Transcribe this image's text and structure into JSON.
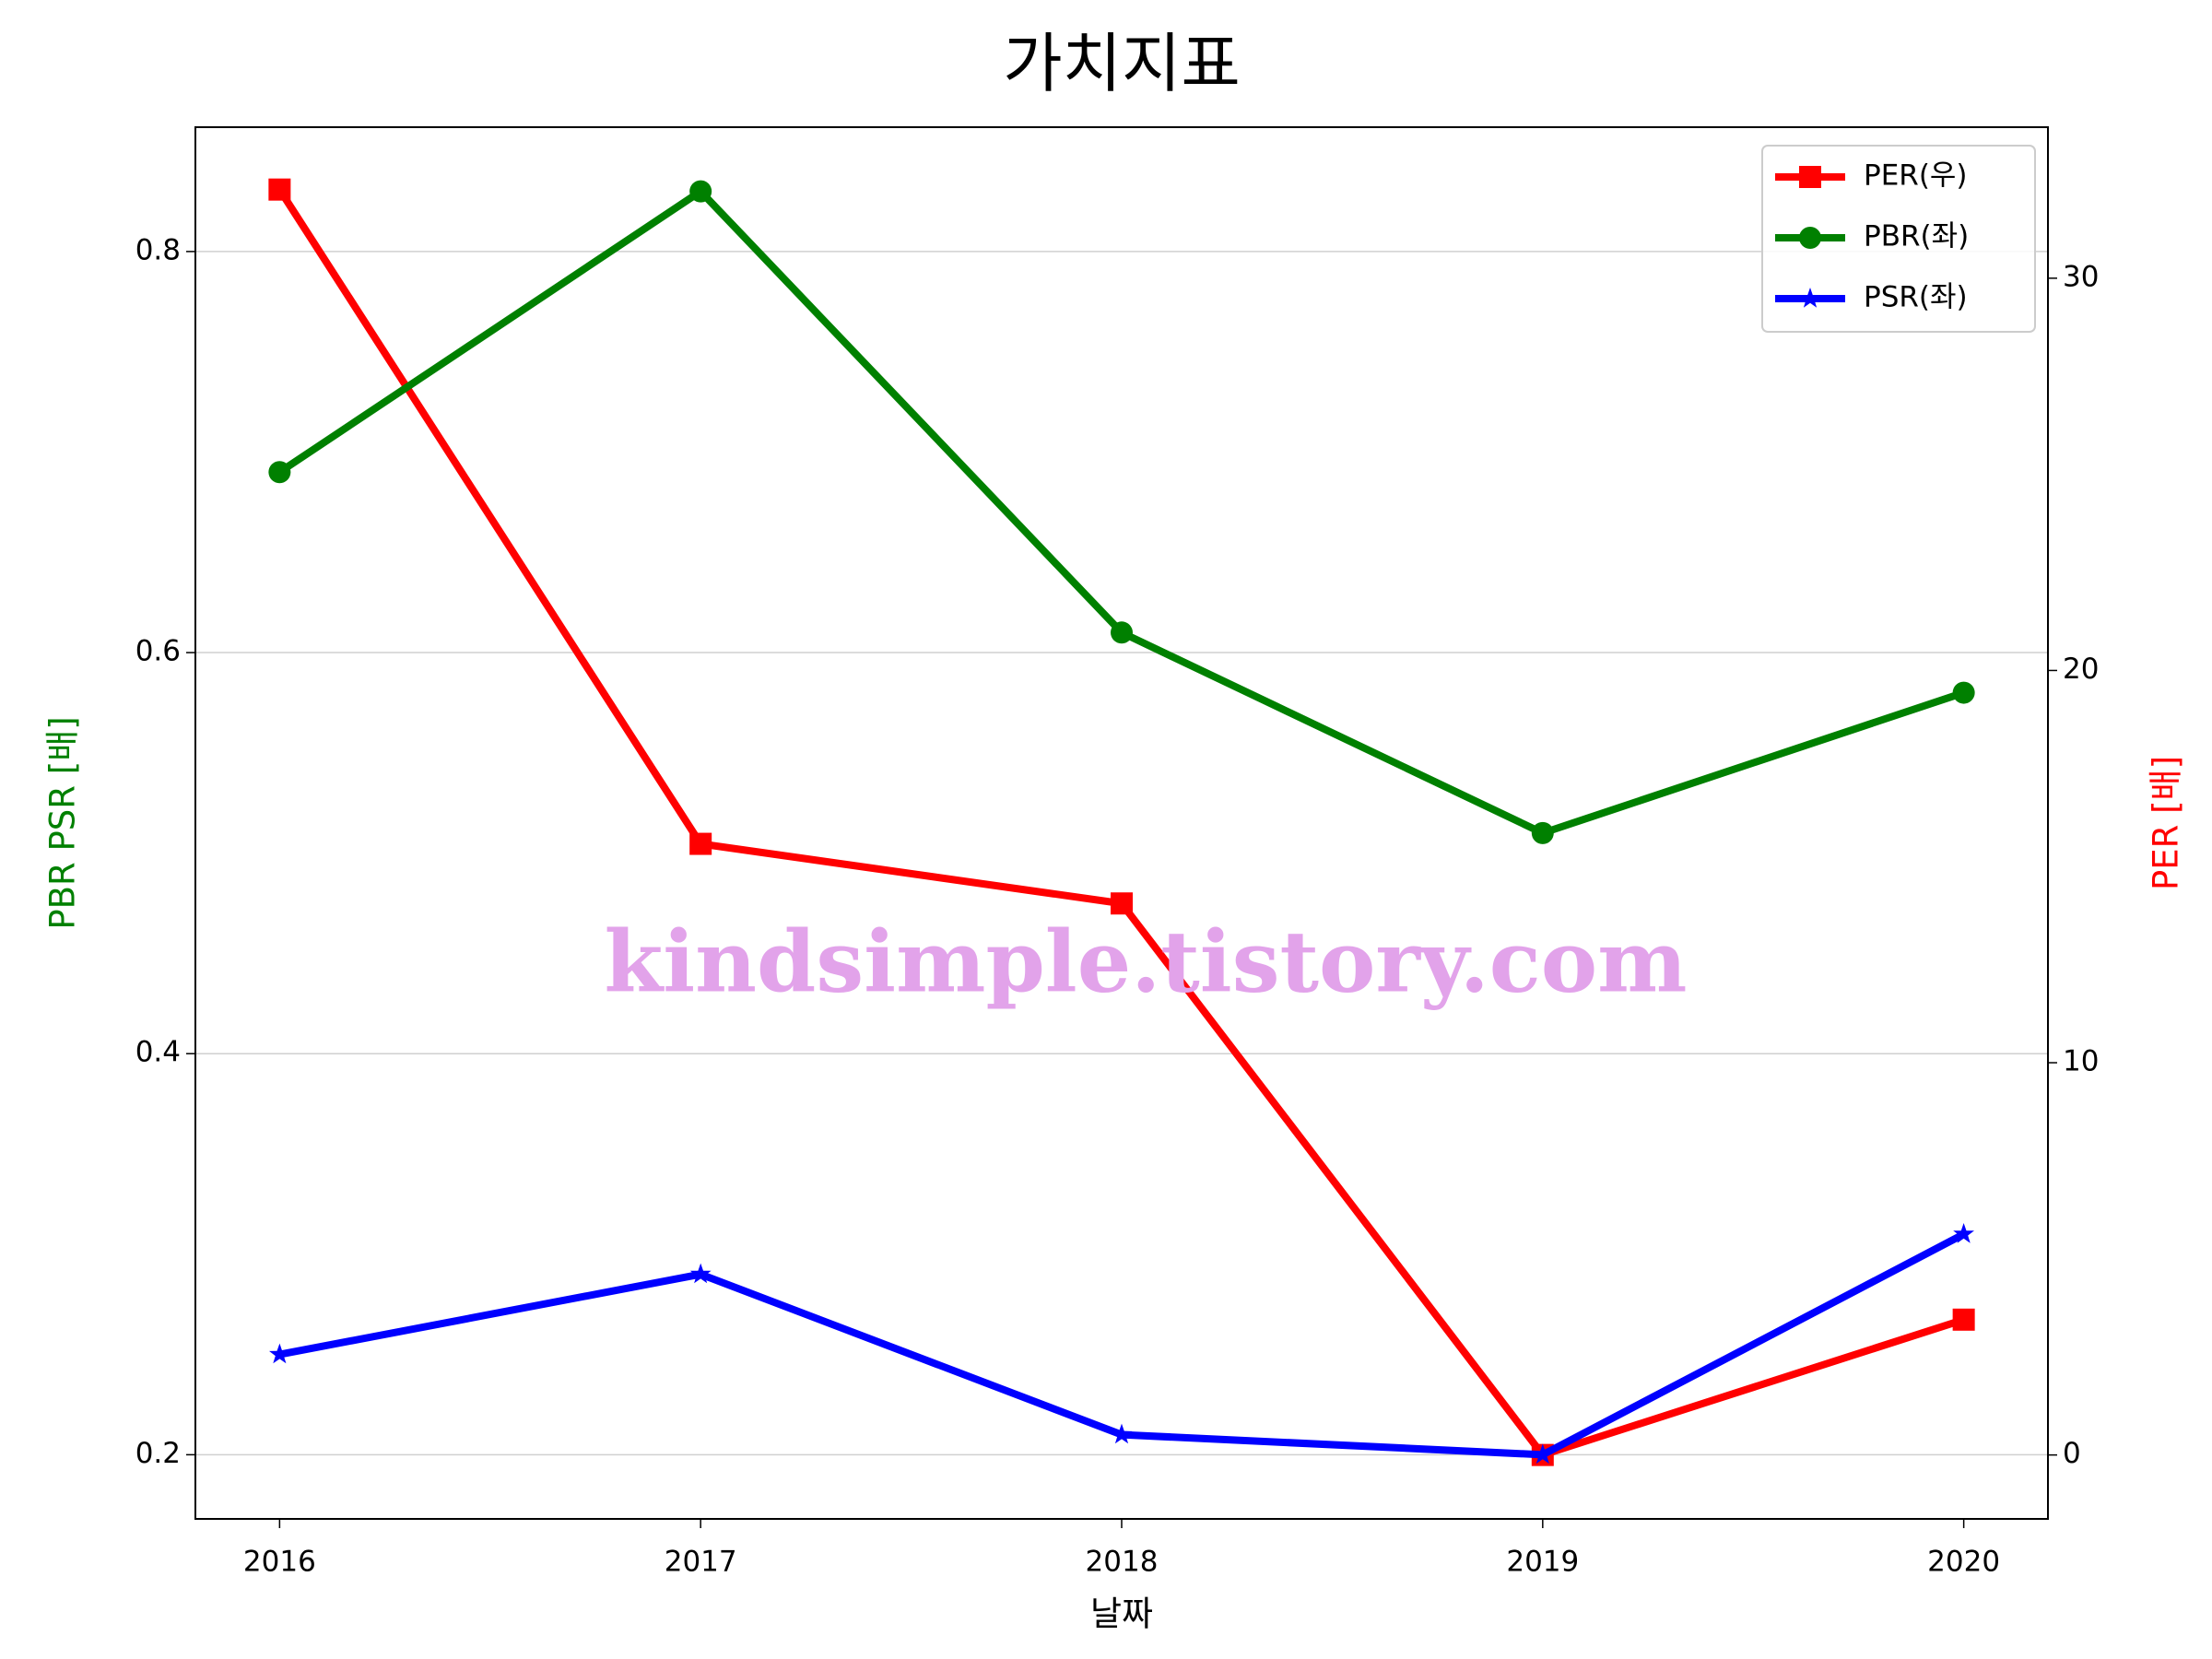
{
  "chart_data": {
    "type": "line",
    "title": "가치지표",
    "xlabel": "날짜",
    "ylabel": "PBR PSR [배]",
    "y2label": "PER [배]",
    "watermark": "kindsimple.tistory.com",
    "x": [
      2016,
      2017,
      2018,
      2019,
      2020
    ],
    "xlim": [
      2015.8,
      2020.2
    ],
    "xticks": [
      2016,
      2017,
      2018,
      2019,
      2020
    ],
    "ylim": [
      0.168,
      0.862
    ],
    "yticks": [
      0.2,
      0.4,
      0.6,
      0.8
    ],
    "y2lim": [
      -1.63,
      33.85
    ],
    "y2ticks": [
      0,
      10,
      20,
      30
    ],
    "grid": true,
    "legend": "upper right",
    "series": [
      {
        "name": "PER(우)",
        "color": "#ff0000",
        "marker": "square",
        "axis": "y2",
        "values": [
          32.26,
          15.58,
          14.06,
          0,
          3.45
        ]
      },
      {
        "name": "PBR(좌)",
        "color": "#008000",
        "marker": "circle",
        "values": [
          0.69,
          0.83,
          0.61,
          0.51,
          0.58
        ]
      },
      {
        "name": "PSR(좌)",
        "color": "#0000ff",
        "marker": "star",
        "values": [
          0.25,
          0.29,
          0.21,
          0.2,
          0.31
        ]
      }
    ]
  }
}
